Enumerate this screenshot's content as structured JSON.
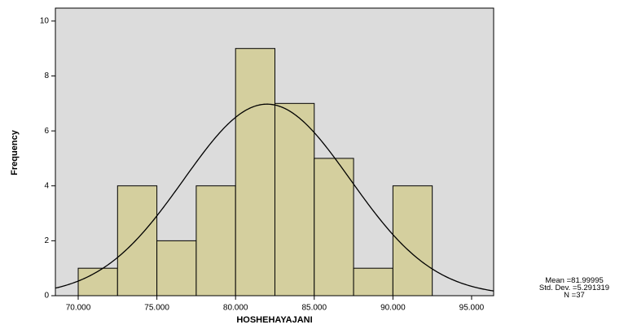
{
  "chart_data": {
    "type": "histogram",
    "x_label": "HOSHEHAYAJANI",
    "y_label": "Frequency",
    "bins": [
      70,
      72.5,
      75,
      77.5,
      80,
      82.5,
      85,
      87.5,
      90,
      92.5
    ],
    "values": [
      1,
      4,
      2,
      4,
      9,
      7,
      5,
      1,
      4
    ],
    "color": "#d4cf9e",
    "curve_color": "#000000",
    "xlim": [
      68.55,
      96.4
    ],
    "ylim": [
      0,
      10.47
    ],
    "xticks": [
      {
        "value": 70,
        "label": "70.000"
      },
      {
        "value": 75,
        "label": "75.000"
      },
      {
        "value": 80,
        "label": "80.000"
      },
      {
        "value": 85,
        "label": "85.000"
      },
      {
        "value": 90,
        "label": "90.000"
      },
      {
        "value": 95,
        "label": "95.000"
      }
    ],
    "yticks": [
      0,
      2,
      4,
      6,
      8,
      10
    ],
    "stats": [
      {
        "label": "Mean =",
        "value": 81.99995
      },
      {
        "label": "Std. Dev. =",
        "value": 5.291319
      },
      {
        "label": "N =",
        "value": 37
      }
    ]
  }
}
